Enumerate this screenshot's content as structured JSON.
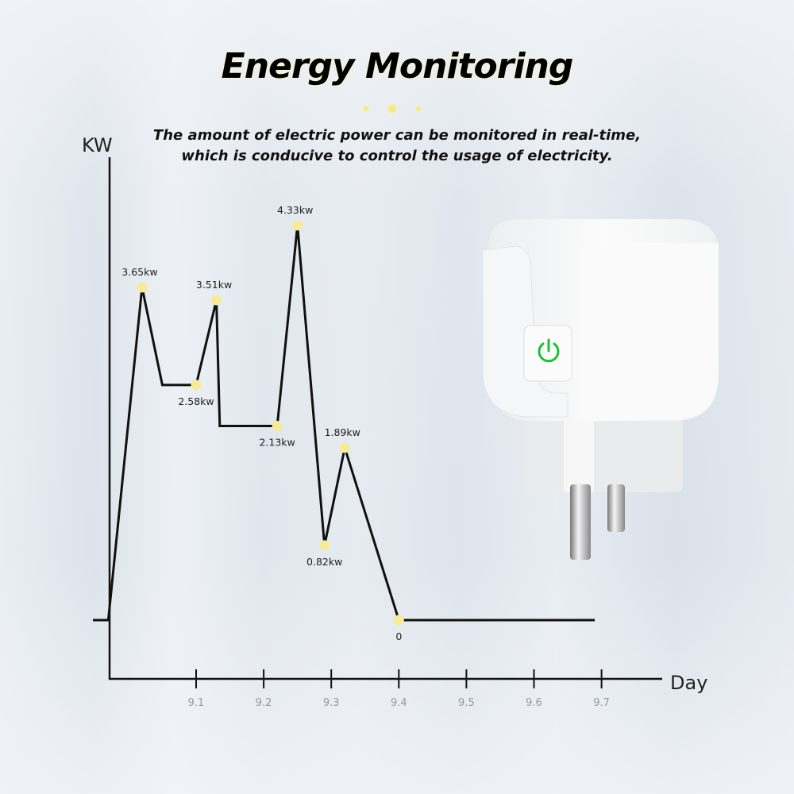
{
  "header": {
    "title": "Energy Monitoring",
    "subtitle_line1": "The amount of electric power can be monitored in real-time,",
    "subtitle_line2": "which is conducive to control the usage of electricity."
  },
  "product": {
    "name_icon": "smart-plug-image",
    "button_icon": "power-icon",
    "led_color": "#1fbf3a"
  },
  "chart_data": {
    "type": "line",
    "title": "Energy Monitoring",
    "xlabel": "Day",
    "ylabel": "KW",
    "x_ticks": [
      "9.1",
      "9.2",
      "9.3",
      "9.4",
      "9.5",
      "9.6",
      "9.7"
    ],
    "grid": false,
    "line_color": "#111111",
    "marker_color": "#f7eb9a",
    "series": [
      {
        "points": [
          {
            "x": 8.97,
            "y": 0,
            "label": ""
          },
          {
            "x": 9.02,
            "y": 3.65,
            "label": "3.65kw"
          },
          {
            "x": 9.05,
            "y": 2.58,
            "label": ""
          },
          {
            "x": 9.1,
            "y": 2.58,
            "label": "2.58kw"
          },
          {
            "x": 9.13,
            "y": 3.51,
            "label": "3.51kw"
          },
          {
            "x": 9.135,
            "y": 2.13,
            "label": ""
          },
          {
            "x": 9.22,
            "y": 2.13,
            "label": "2.13kw"
          },
          {
            "x": 9.25,
            "y": 4.33,
            "label": "4.33kw"
          },
          {
            "x": 9.29,
            "y": 0.82,
            "label": "0.82kw"
          },
          {
            "x": 9.32,
            "y": 1.89,
            "label": "1.89kw"
          },
          {
            "x": 9.4,
            "y": 0,
            "label": "0"
          },
          {
            "x": 9.69,
            "y": 0,
            "label": ""
          }
        ]
      }
    ]
  }
}
